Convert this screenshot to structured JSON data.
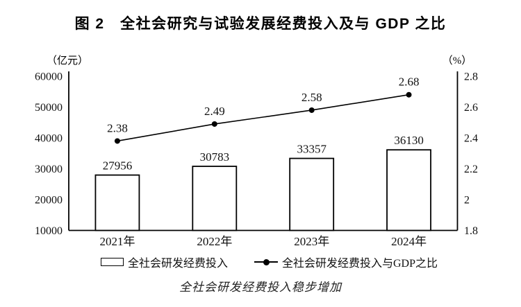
{
  "chart_data": {
    "type": "bar",
    "title": "图 2　全社会研究与试验发展经费投入及与 GDP 之比",
    "caption": "全社会研发经费投入稳步增加",
    "categories": [
      "2021年",
      "2022年",
      "2023年",
      "2024年"
    ],
    "series": [
      {
        "name": "全社会研发经费投入",
        "type": "bar",
        "axis": "left",
        "values": [
          27956,
          30783,
          33357,
          36130
        ],
        "labels": [
          "27956",
          "30783",
          "33357",
          "36130"
        ]
      },
      {
        "name": "全社会研发经费投入与GDP之比",
        "type": "line",
        "axis": "right",
        "values": [
          2.38,
          2.49,
          2.58,
          2.68
        ],
        "labels": [
          "2.38",
          "2.49",
          "2.58",
          "2.68"
        ]
      }
    ],
    "left_axis": {
      "unit_label": "（亿元）",
      "min": 10000,
      "max": 60000,
      "ticks": [
        60000,
        50000,
        40000,
        30000,
        20000,
        10000
      ],
      "tick_labels": [
        "60000",
        "50000",
        "40000",
        "30000",
        "20000",
        "10000"
      ]
    },
    "right_axis": {
      "unit_label": "（%）",
      "min": 1.8,
      "max": 2.8,
      "ticks": [
        2.8,
        2.6,
        2.4,
        2.2,
        2,
        1.8
      ],
      "tick_labels": [
        "2.8",
        "2.6",
        "2.4",
        "2.2",
        "2",
        "1.8"
      ]
    },
    "legend_position": "bottom",
    "grid": false,
    "colors": {
      "foreground": "#000000",
      "background": "#ffffff"
    }
  }
}
